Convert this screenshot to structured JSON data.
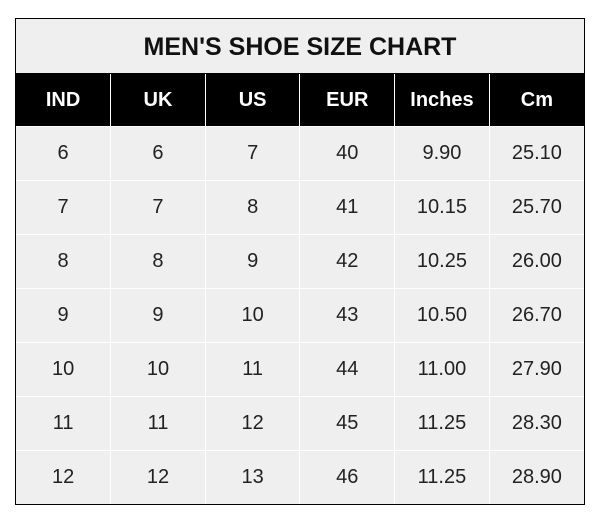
{
  "title": "MEN'S SHOE SIZE CHART",
  "columns": [
    "IND",
    "UK",
    "US",
    "EUR",
    "Inches",
    "Cm"
  ],
  "rows": [
    [
      "6",
      "6",
      "7",
      "40",
      "9.90",
      "25.10"
    ],
    [
      "7",
      "7",
      "8",
      "41",
      "10.15",
      "25.70"
    ],
    [
      "8",
      "8",
      "9",
      "42",
      "10.25",
      "26.00"
    ],
    [
      "9",
      "9",
      "10",
      "43",
      "10.50",
      "26.70"
    ],
    [
      "10",
      "10",
      "11",
      "44",
      "11.00",
      "27.90"
    ],
    [
      "11",
      "11",
      "12",
      "45",
      "11.25",
      "28.30"
    ],
    [
      "12",
      "12",
      "13",
      "46",
      "11.25",
      "28.90"
    ]
  ]
}
